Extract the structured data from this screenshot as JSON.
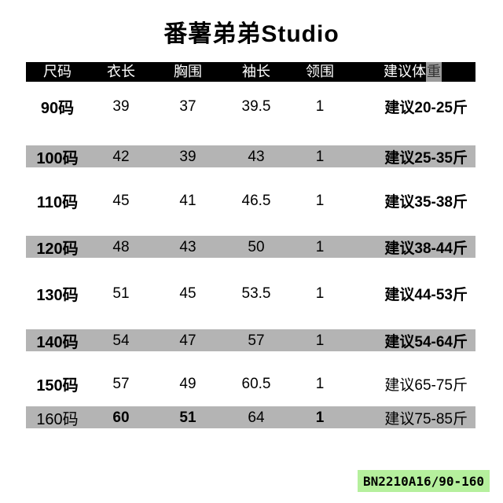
{
  "title": "番薯弟弟Studio",
  "colors": {
    "header_bg": "#000000",
    "header_text": "#ffffff",
    "row_shade": "#b4b4b4",
    "badge_highlight": "#b5f09d",
    "header_char_highlight_bg": "#9a9a9a",
    "header_char_highlight_text": "#333333",
    "text": "#000000"
  },
  "table": {
    "columns": [
      {
        "key": "size",
        "label": "尺码"
      },
      {
        "key": "length",
        "label": "衣长"
      },
      {
        "key": "chest",
        "label": "胸围"
      },
      {
        "key": "sleeve",
        "label": "袖长"
      },
      {
        "key": "neck",
        "label": "领围"
      },
      {
        "key": "weight",
        "label": "建议体重",
        "highlight_last_char": true
      }
    ],
    "rows": [
      {
        "size": "90码",
        "length": "39",
        "chest": "37",
        "sleeve": "39.5",
        "neck": "1",
        "weight": "建议20-25斤",
        "shaded": false,
        "bold_cols": [
          "size",
          "weight"
        ]
      },
      {
        "size": "100码",
        "length": "42",
        "chest": "39",
        "sleeve": "43",
        "neck": "1",
        "weight": "建议25-35斤",
        "shaded": true,
        "bold_cols": [
          "size",
          "weight"
        ]
      },
      {
        "size": "110码",
        "length": "45",
        "chest": "41",
        "sleeve": "46.5",
        "neck": "1",
        "weight": "建议35-38斤",
        "shaded": false,
        "bold_cols": [
          "size",
          "weight"
        ]
      },
      {
        "size": "120码",
        "length": "48",
        "chest": "43",
        "sleeve": "50",
        "neck": "1",
        "weight": "建议38-44斤",
        "shaded": true,
        "bold_cols": [
          "size",
          "weight"
        ]
      },
      {
        "size": "130码",
        "length": "51",
        "chest": "45",
        "sleeve": "53.5",
        "neck": "1",
        "weight": "建议44-53斤",
        "shaded": false,
        "bold_cols": [
          "size",
          "weight"
        ]
      },
      {
        "size": "140码",
        "length": "54",
        "chest": "47",
        "sleeve": "57",
        "neck": "1",
        "weight": "建议54-64斤",
        "shaded": true,
        "bold_cols": [
          "size",
          "weight"
        ]
      },
      {
        "size": "150码",
        "length": "57",
        "chest": "49",
        "sleeve": "60.5",
        "neck": "1",
        "weight": "建议65-75斤",
        "shaded": false,
        "bold_cols": [
          "size"
        ]
      },
      {
        "size": "160码",
        "length": "60",
        "chest": "51",
        "sleeve": "64",
        "neck": "1",
        "weight": "建议75-85斤",
        "shaded": true,
        "bold_cols": [
          "length",
          "chest",
          "neck"
        ]
      }
    ]
  },
  "footer": {
    "code": "BN2210A16/90-160"
  }
}
